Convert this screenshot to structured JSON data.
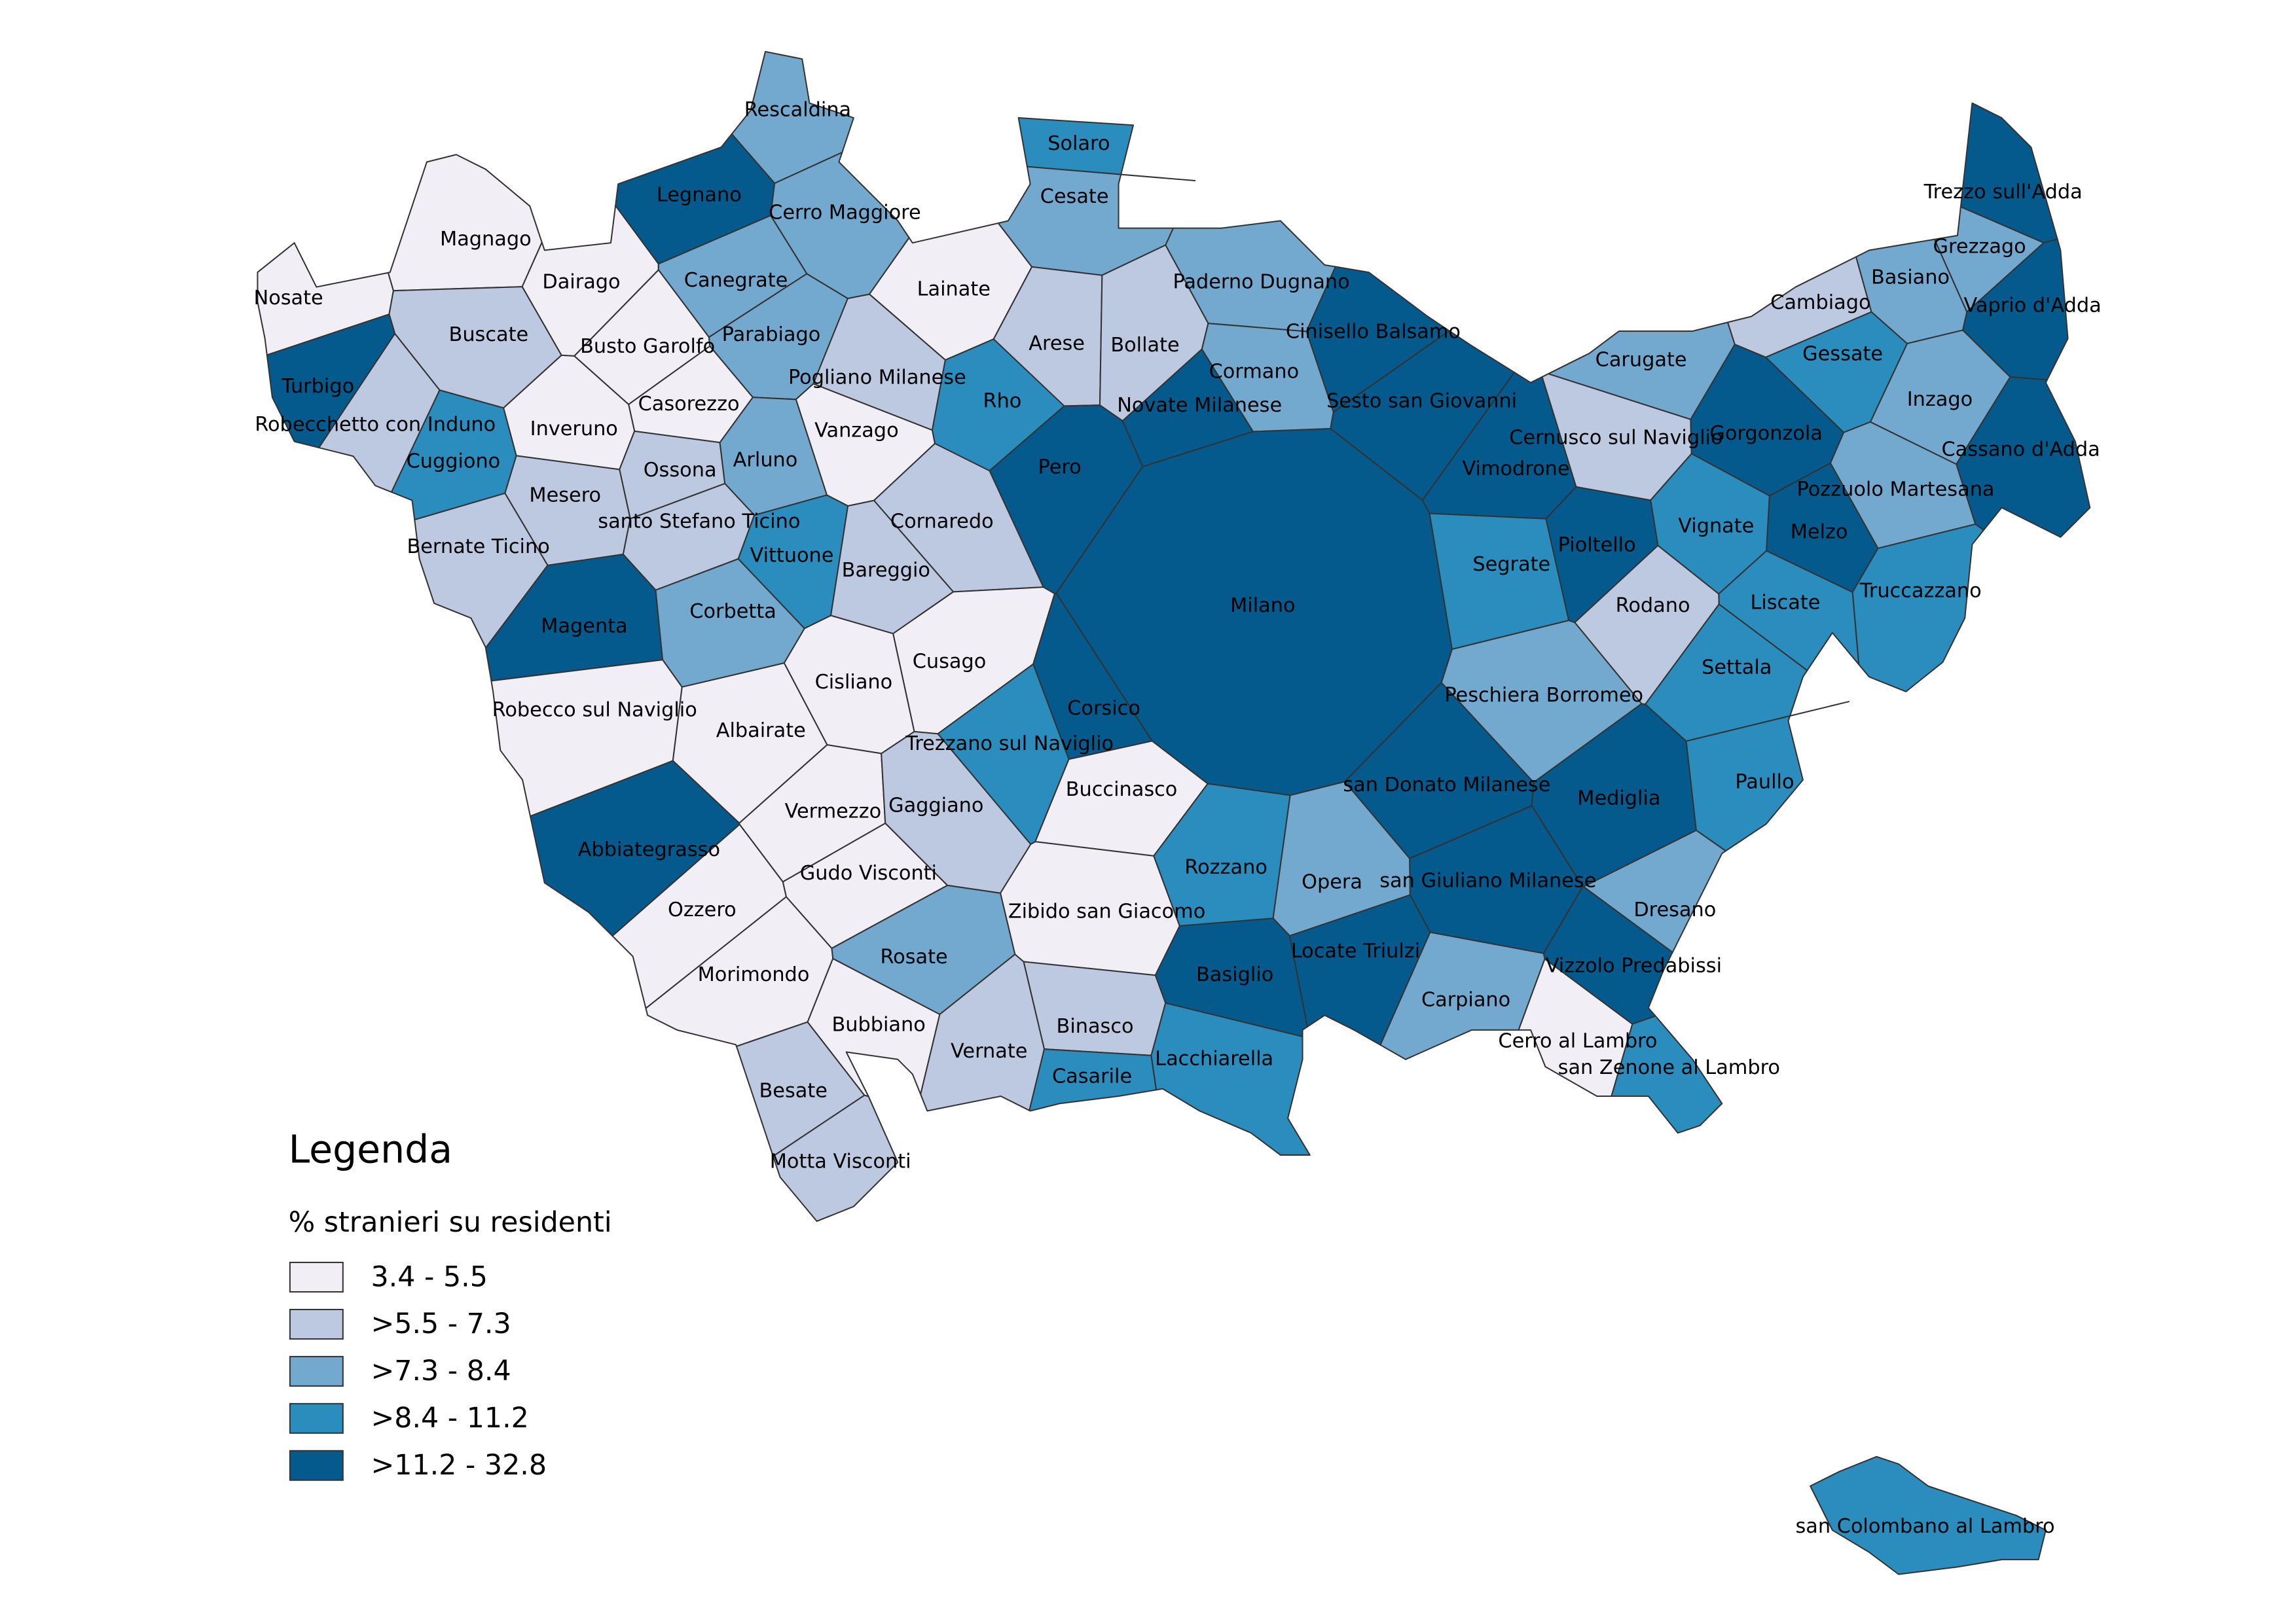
{
  "legend": {
    "title": "Legenda",
    "subtitle": "% stranieri su residenti",
    "classes": [
      {
        "label": "3.4 - 5.5",
        "color": "#f1eef6"
      },
      {
        "label": ">5.5 - 7.3",
        "color": "#bdc9e1"
      },
      {
        "label": ">7.3 - 8.4",
        "color": "#74a9cf"
      },
      {
        "label": ">8.4 - 11.2",
        "color": "#2b8cbe"
      },
      {
        "label": ">11.2 - 32.8",
        "color": "#045a8d"
      }
    ]
  },
  "municipalities": [
    {
      "name": "Rescaldina",
      "class": 2
    },
    {
      "name": "Legnano",
      "class": 4
    },
    {
      "name": "Cerro Maggiore",
      "class": 2
    },
    {
      "name": "Magnago",
      "class": 0
    },
    {
      "name": "Nosate",
      "class": 0
    },
    {
      "name": "Dairago",
      "class": 0
    },
    {
      "name": "Canegrate",
      "class": 2
    },
    {
      "name": "Lainate",
      "class": 0
    },
    {
      "name": "Solaro",
      "class": 3
    },
    {
      "name": "Cesate",
      "class": 2
    },
    {
      "name": "Paderno Dugnano",
      "class": 2
    },
    {
      "name": "Cinisello Balsamo",
      "class": 4
    },
    {
      "name": "Buscate",
      "class": 1
    },
    {
      "name": "Busto Garolfo",
      "class": 0
    },
    {
      "name": "Parabiago",
      "class": 2
    },
    {
      "name": "Arese",
      "class": 1
    },
    {
      "name": "Bollate",
      "class": 1
    },
    {
      "name": "Turbigo",
      "class": 4
    },
    {
      "name": "Pogliano Milanese",
      "class": 1
    },
    {
      "name": "Cormano",
      "class": 2
    },
    {
      "name": "Sesto san Giovanni",
      "class": 4
    },
    {
      "name": "Novate Milanese",
      "class": 4
    },
    {
      "name": "Rho",
      "class": 3
    },
    {
      "name": "Robecchetto con Induno",
      "class": 1
    },
    {
      "name": "Casorezzo",
      "class": 0
    },
    {
      "name": "Inveruno",
      "class": 0
    },
    {
      "name": "Vanzago",
      "class": 0
    },
    {
      "name": "Cuggiono",
      "class": 3
    },
    {
      "name": "Ossona",
      "class": 1
    },
    {
      "name": "Arluno",
      "class": 2
    },
    {
      "name": "Pero",
      "class": 4
    },
    {
      "name": "Mesero",
      "class": 1
    },
    {
      "name": "santo Stefano Ticino",
      "class": 1
    },
    {
      "name": "Cornaredo",
      "class": 1
    },
    {
      "name": "Vittuone",
      "class": 3
    },
    {
      "name": "Bernate Ticino",
      "class": 1
    },
    {
      "name": "Bareggio",
      "class": 1
    },
    {
      "name": "Milano",
      "class": 4
    },
    {
      "name": "Magenta",
      "class": 4
    },
    {
      "name": "Corbetta",
      "class": 2
    },
    {
      "name": "Cusago",
      "class": 0
    },
    {
      "name": "Cisliano",
      "class": 0
    },
    {
      "name": "Corsico",
      "class": 4
    },
    {
      "name": "Robecco sul Naviglio",
      "class": 0
    },
    {
      "name": "Albairate",
      "class": 0
    },
    {
      "name": "Trezzano sul Naviglio",
      "class": 3
    },
    {
      "name": "Buccinasco",
      "class": 0
    },
    {
      "name": "Vermezzo",
      "class": 0
    },
    {
      "name": "Gaggiano",
      "class": 1
    },
    {
      "name": "Abbiategrasso",
      "class": 4
    },
    {
      "name": "Gudo Visconti",
      "class": 0
    },
    {
      "name": "Ozzero",
      "class": 0
    },
    {
      "name": "Zibido san Giacomo",
      "class": 0
    },
    {
      "name": "Rozzano",
      "class": 3
    },
    {
      "name": "Opera",
      "class": 2
    },
    {
      "name": "Rosate",
      "class": 2
    },
    {
      "name": "Morimondo",
      "class": 0
    },
    {
      "name": "Basiglio",
      "class": 4
    },
    {
      "name": "Locate Triulzi",
      "class": 4
    },
    {
      "name": "Bubbiano",
      "class": 0
    },
    {
      "name": "Binasco",
      "class": 1
    },
    {
      "name": "Vernate",
      "class": 1
    },
    {
      "name": "Casarile",
      "class": 3
    },
    {
      "name": "Lacchiarella",
      "class": 3
    },
    {
      "name": "Besate",
      "class": 1
    },
    {
      "name": "Motta Visconti",
      "class": 1
    },
    {
      "name": "Carpiano",
      "class": 2
    },
    {
      "name": "san Donato Milanese",
      "class": 4
    },
    {
      "name": "san Giuliano Milanese",
      "class": 4
    },
    {
      "name": "Mediglia",
      "class": 4
    },
    {
      "name": "Peschiera Borromeo",
      "class": 2
    },
    {
      "name": "Segrate",
      "class": 3
    },
    {
      "name": "Vimodrone",
      "class": 4
    },
    {
      "name": "Pioltello",
      "class": 4
    },
    {
      "name": "Rodano",
      "class": 1
    },
    {
      "name": "Settala",
      "class": 3
    },
    {
      "name": "Paullo",
      "class": 3
    },
    {
      "name": "Dresano",
      "class": 2
    },
    {
      "name": "Vizzolo Predabissi",
      "class": 4
    },
    {
      "name": "Cerro al Lambro",
      "class": 0
    },
    {
      "name": "san Zenone al Lambro",
      "class": 3
    },
    {
      "name": "Carugate",
      "class": 2
    },
    {
      "name": "Cernusco sul Naviglio",
      "class": 1
    },
    {
      "name": "Gorgonzola",
      "class": 4
    },
    {
      "name": "Vignate",
      "class": 3
    },
    {
      "name": "Liscate",
      "class": 3
    },
    {
      "name": "Melzo",
      "class": 4
    },
    {
      "name": "Pozzuolo Martesana",
      "class": 2
    },
    {
      "name": "Truccazzano",
      "class": 3
    },
    {
      "name": "Cassano d'Adda",
      "class": 4
    },
    {
      "name": "Inzago",
      "class": 2
    },
    {
      "name": "Gessate",
      "class": 3
    },
    {
      "name": "Cambiago",
      "class": 1
    },
    {
      "name": "Basiano",
      "class": 2
    },
    {
      "name": "Grezzago",
      "class": 2
    },
    {
      "name": "Trezzo sull'Adda",
      "class": 4
    },
    {
      "name": "Vaprio d'Adda",
      "class": 4
    },
    {
      "name": "san Colombano al Lambro",
      "class": 3
    }
  ]
}
